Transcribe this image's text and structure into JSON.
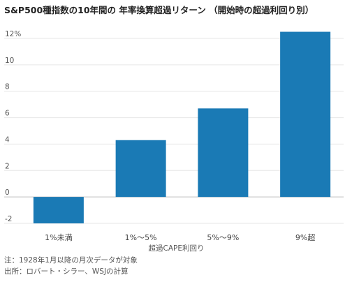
{
  "title": "S&P500種指数の10年間の 年率換算超過リターン （開始時の超過利回り別）",
  "chart_data": {
    "type": "bar",
    "categories": [
      "1%未満",
      "1%～5%",
      "5%～9%",
      "9%超"
    ],
    "values": [
      -2.0,
      4.3,
      6.7,
      12.5
    ],
    "xlabel": "超過CAPE利回り",
    "ylabel": "",
    "ylim": [
      -2,
      12
    ],
    "yticks": [
      -2,
      0,
      2,
      4,
      6,
      8,
      10,
      12
    ],
    "ytick_labels": [
      "-2",
      "0",
      "2",
      "4",
      "6",
      "8",
      "10",
      "12%"
    ],
    "grid": true,
    "bar_color": "#1a7ab5"
  },
  "notes": {
    "note": "注：1928年1月以降の月次データが対象",
    "source": "出所：ロバート・シラー、WSJの計算"
  }
}
